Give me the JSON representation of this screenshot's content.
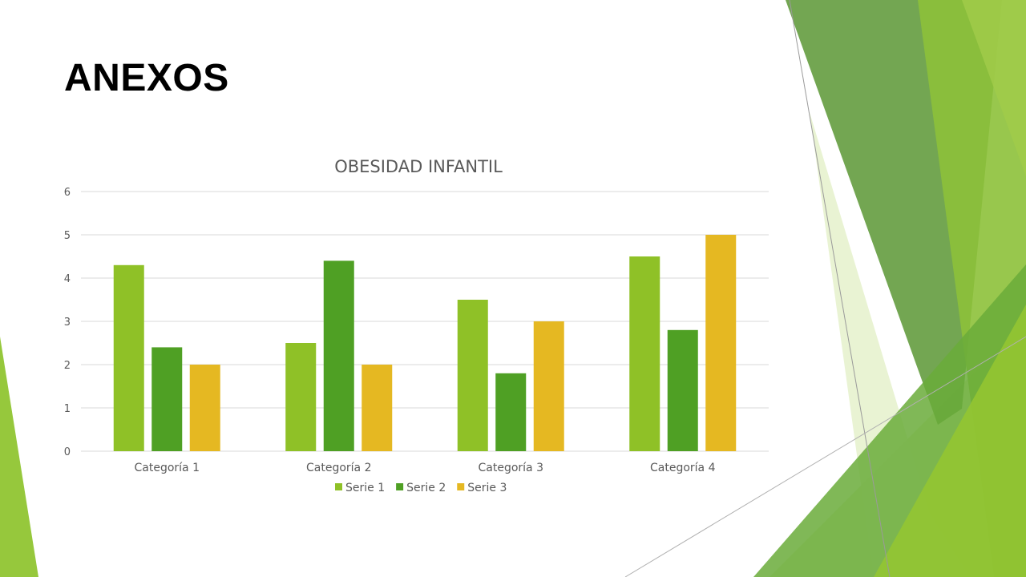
{
  "slide": {
    "title": "ANEXOS"
  },
  "chart_data": {
    "type": "bar",
    "title": "OBESIDAD INFANTIL",
    "categories": [
      "Categoría 1",
      "Categoría 2",
      "Categoría 3",
      "Categoría 4"
    ],
    "series": [
      {
        "name": "Serie 1",
        "values": [
          4.3,
          2.5,
          3.5,
          4.5
        ],
        "color": "#8fc127"
      },
      {
        "name": "Serie 2",
        "values": [
          2.4,
          4.4,
          1.8,
          2.8
        ],
        "color": "#4fa024"
      },
      {
        "name": "Serie 3",
        "values": [
          2,
          2,
          3,
          5
        ],
        "color": "#e5b822"
      }
    ],
    "ylim": [
      0,
      6
    ],
    "yticks": [
      "0",
      "1",
      "2",
      "3",
      "4",
      "5",
      "6"
    ],
    "xlabel": "",
    "ylabel": "",
    "grid": true,
    "legend_position": "bottom"
  },
  "colors": {
    "gridline": "#d9d9d9",
    "axis_text": "#595959",
    "title_text": "#595959",
    "decor_green_dark": "#4a8c2a",
    "decor_green": "#8fc127",
    "decor_green_light": "#c9e39a"
  }
}
